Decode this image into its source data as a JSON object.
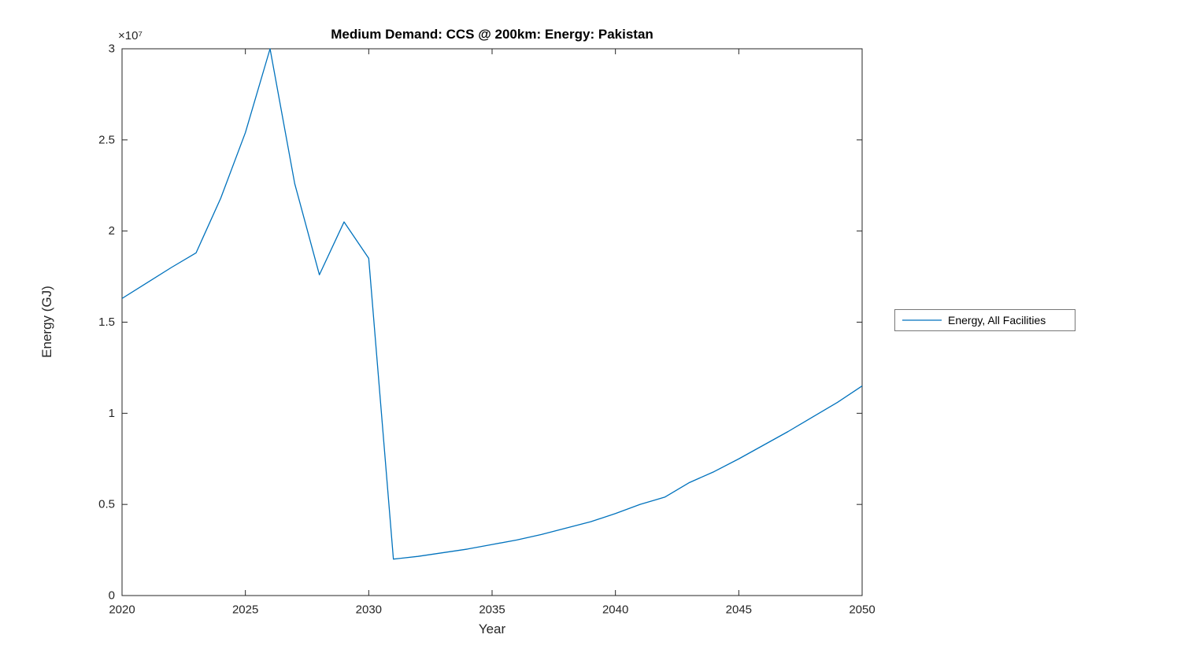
{
  "chart_data": {
    "type": "line",
    "title": "Medium Demand: CCS @ 200km: Energy: Pakistan",
    "xlabel": "Year",
    "ylabel": "Energy (GJ)",
    "y_exponent_label": "×10⁷",
    "xlim": [
      2020,
      2050
    ],
    "ylim": [
      0,
      30000000
    ],
    "grid": false,
    "legend_position": "right-outside",
    "axis_color": "#262626",
    "x_ticks": [
      {
        "value": 2020,
        "label": "2020"
      },
      {
        "value": 2025,
        "label": "2025"
      },
      {
        "value": 2030,
        "label": "2030"
      },
      {
        "value": 2035,
        "label": "2035"
      },
      {
        "value": 2040,
        "label": "2040"
      },
      {
        "value": 2045,
        "label": "2045"
      },
      {
        "value": 2050,
        "label": "2050"
      }
    ],
    "y_ticks": [
      {
        "value": 0,
        "label": "0"
      },
      {
        "value": 5000000,
        "label": "0.5"
      },
      {
        "value": 10000000,
        "label": "1"
      },
      {
        "value": 15000000,
        "label": "1.5"
      },
      {
        "value": 20000000,
        "label": "2"
      },
      {
        "value": 25000000,
        "label": "2.5"
      },
      {
        "value": 30000000,
        "label": "3"
      }
    ],
    "x": [
      2020,
      2021,
      2022,
      2023,
      2024,
      2025,
      2026,
      2027,
      2028,
      2029,
      2030,
      2031,
      2032,
      2033,
      2034,
      2035,
      2036,
      2037,
      2038,
      2039,
      2040,
      2041,
      2042,
      2043,
      2044,
      2045,
      2046,
      2047,
      2048,
      2049,
      2050
    ],
    "series": [
      {
        "name": "Energy, All Facilities",
        "color": "#0072BD",
        "values": [
          16300000,
          17150000,
          18000000,
          18800000,
          21800000,
          25400000,
          30000000,
          22600000,
          17600000,
          20500000,
          18500000,
          2000000,
          2150000,
          2350000,
          2550000,
          2800000,
          3050000,
          3350000,
          3700000,
          4050000,
          4500000,
          5000000,
          5400000,
          6200000,
          6800000,
          7500000,
          8250000,
          9000000,
          9800000,
          10600000,
          11500000
        ]
      }
    ]
  }
}
